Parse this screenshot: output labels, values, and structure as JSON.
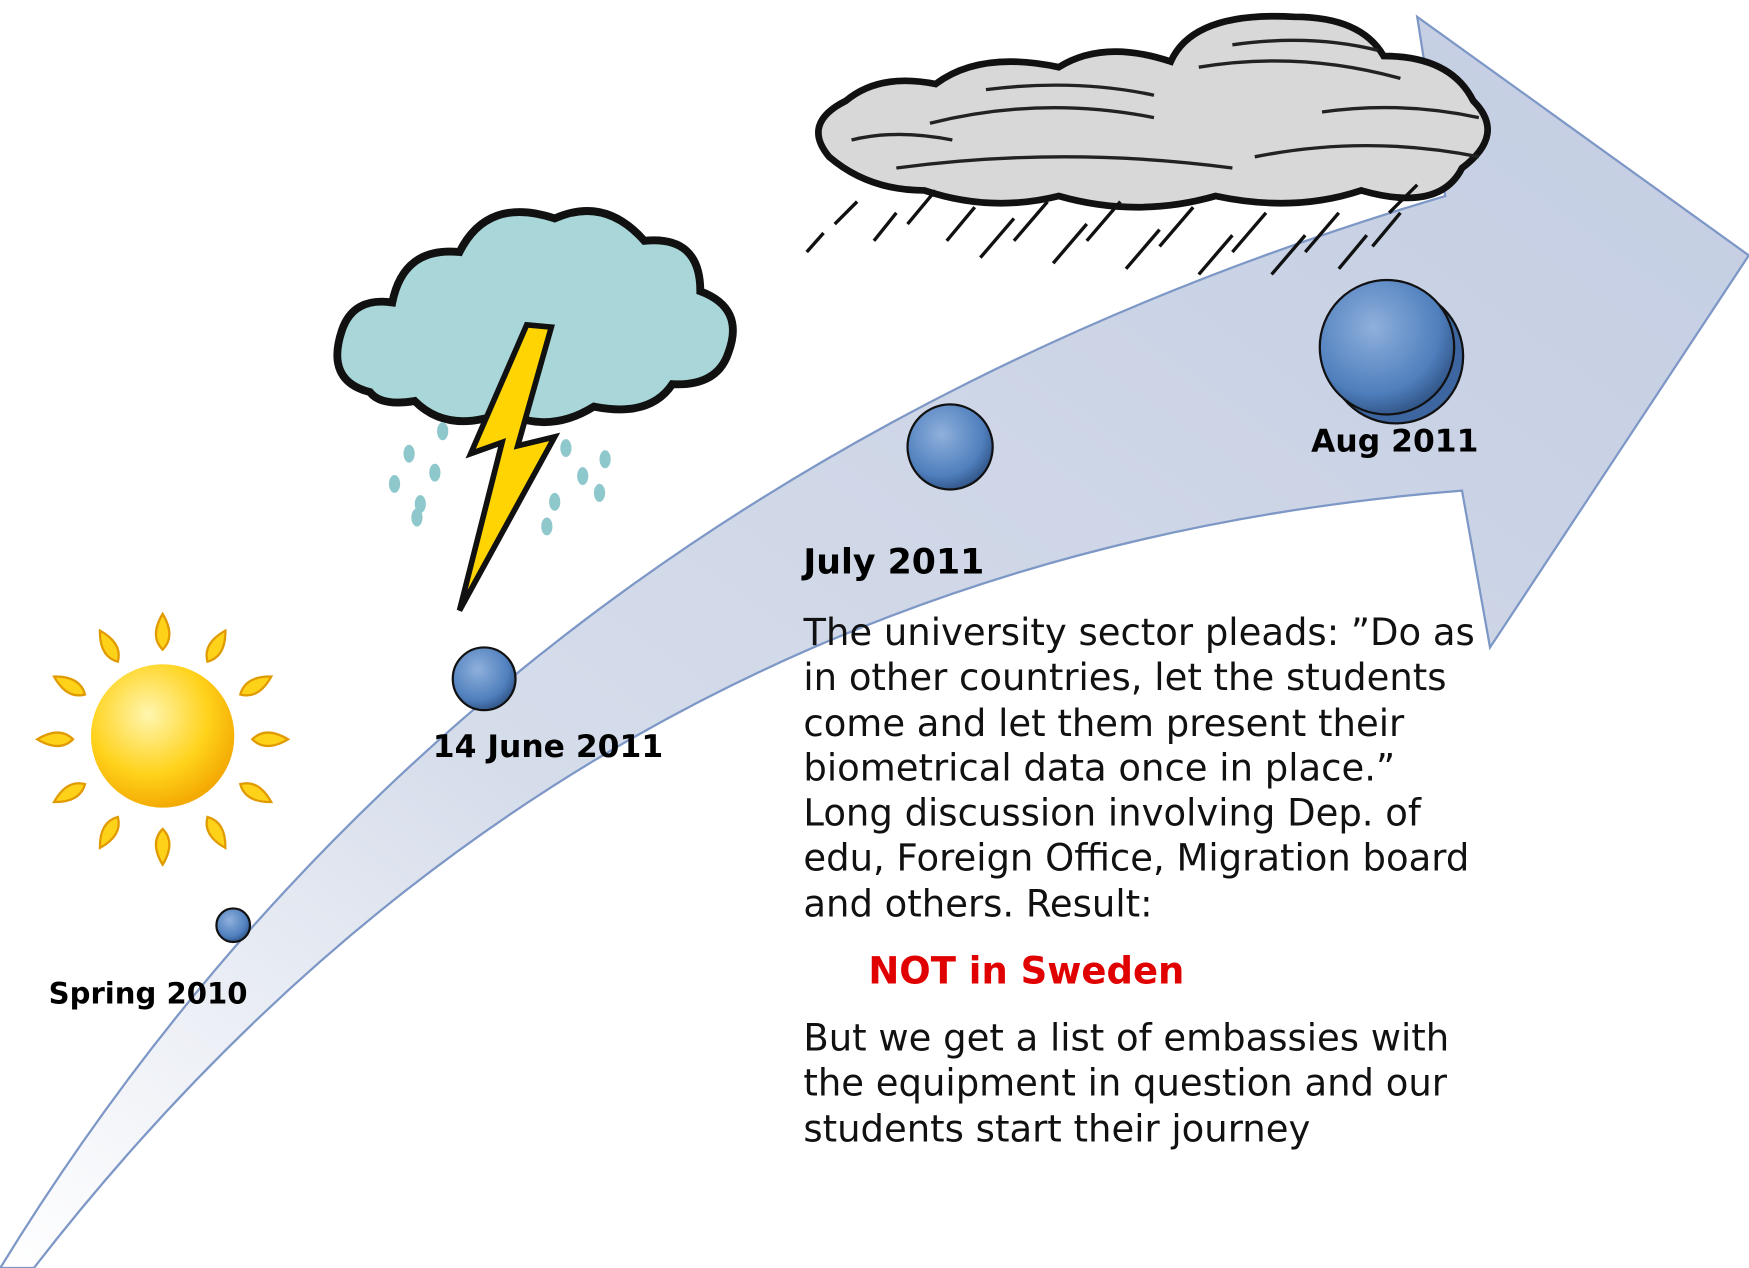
{
  "milestones": [
    {
      "label": "Spring 2010"
    },
    {
      "label": "14 June 2011"
    },
    {
      "label": "July 2011"
    },
    {
      "label": "Aug 2011"
    }
  ],
  "description": {
    "paragraph": "The university sector pleads: ”Do as in other countries, let the students come and let them present their biometrical data once in place.” Long discussion involving Dep. of edu, Foreign Office, Migration board and others. Result:",
    "highlight": "NOT in Sweden",
    "closing": "But we get a list of embassies with the equipment in question and our students start their journey"
  }
}
